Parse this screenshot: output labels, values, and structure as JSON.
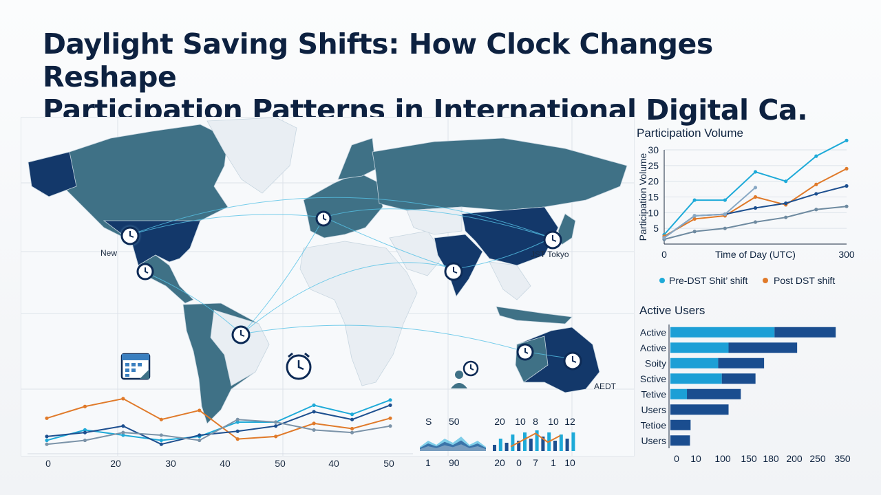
{
  "title_lines": [
    "Daylight Saving Shifts: How Clock Changes Reshape",
    "Participation Patterns in International Digital Ca."
  ],
  "map": {
    "labels": {
      "new": "New",
      "tokyo": "JST Tokyo",
      "aedt": "AEDT"
    },
    "icons": [
      "clock-icon",
      "calendar-icon",
      "user-clock-icon"
    ],
    "colors": {
      "land_dark": "#13386a",
      "land_mid": "#3f7186",
      "land_light": "#e9eef3",
      "link": "#56c2e6"
    }
  },
  "chart_data": [
    {
      "type": "line",
      "title": "Participation Volume",
      "ylabel": "Participation Volume",
      "xlabel": "Time of Day (UTC)",
      "x_ticks": [
        "0",
        "300"
      ],
      "y_ticks": [
        "5",
        "10",
        "15",
        "20",
        "25",
        "30"
      ],
      "ylim": [
        0,
        30
      ],
      "x": [
        0,
        1,
        2,
        3,
        4,
        5,
        6
      ],
      "legend": [
        "Pre-DST Shit’ shift",
        "Post DST shift"
      ],
      "series": [
        {
          "name": "Pre-DST Shit’ shift",
          "color": "#1eaad8",
          "values": [
            3,
            14,
            14,
            23,
            20,
            28,
            33
          ]
        },
        {
          "name": "Post DST shift",
          "color": "#e07a2a",
          "values": [
            2.5,
            8,
            9,
            15,
            12.5,
            19,
            24
          ]
        },
        {
          "color": "#1d4f8f",
          "values": [
            2,
            9,
            9.5,
            11.5,
            13,
            16,
            18.5
          ]
        },
        {
          "color": "#6e8aa0",
          "values": [
            1.5,
            4,
            5,
            7,
            8.5,
            11,
            12
          ]
        },
        {
          "color": "#88a8c4",
          "values": [
            2,
            9,
            9.5,
            18,
            null,
            null,
            null
          ]
        }
      ]
    },
    {
      "type": "bar",
      "title": "Active Users",
      "orientation": "horizontal",
      "categories": [
        "Active",
        "Active",
        "Soity",
        "Sctive",
        "Tetive",
        "Users",
        "Tetioe",
        "Users"
      ],
      "x_ticks": [
        "0",
        "10",
        "100",
        "150",
        "180",
        "200",
        "250",
        "350"
      ],
      "series": [
        {
          "color": "#1c9fd6",
          "values": [
            170,
            95,
            78,
            84,
            27,
            0,
            0,
            0
          ]
        },
        {
          "color": "#1a4d8f",
          "values": [
            100,
            112,
            75,
            55,
            88,
            95,
            33,
            32
          ]
        }
      ]
    },
    {
      "type": "line",
      "x_ticks": [
        "0",
        "20",
        "30",
        "40",
        "50",
        "40",
        "50"
      ],
      "series": [
        {
          "color": "#1eaad8",
          "values": [
            0.5,
            1.3,
            0.9,
            0.5,
            0.8,
            1.9,
            1.9,
            3.2,
            2.5,
            3.6
          ]
        },
        {
          "color": "#e07a2a",
          "values": [
            2.2,
            3.1,
            3.7,
            2.1,
            2.8,
            0.6,
            0.8,
            1.8,
            1.4,
            2.2
          ]
        },
        {
          "color": "#1d4f8f",
          "values": [
            0.8,
            1.1,
            1.6,
            0.2,
            0.9,
            1.2,
            1.6,
            2.7,
            2.1,
            3.2
          ]
        },
        {
          "color": "#7b93a8",
          "values": [
            0.2,
            0.5,
            1.1,
            0.9,
            0.5,
            2.1,
            1.9,
            1.3,
            1.1,
            1.6
          ]
        }
      ]
    },
    {
      "type": "area",
      "top_labels": [
        "S",
        "50"
      ],
      "bottom_labels": [
        "1",
        "90"
      ],
      "values": [
        2,
        5,
        3,
        6,
        4,
        7,
        3,
        5,
        2
      ]
    },
    {
      "type": "bar",
      "top_labels": [
        "20",
        "10",
        "8",
        "10",
        "12"
      ],
      "bottom_labels": [
        "20",
        "0",
        "7",
        "1",
        "10"
      ],
      "values": [
        3,
        6,
        4,
        8,
        5,
        9,
        6,
        10,
        7,
        9,
        5,
        8,
        6,
        9
      ],
      "overlay": [
        2,
        5,
        8,
        4,
        7
      ]
    }
  ]
}
